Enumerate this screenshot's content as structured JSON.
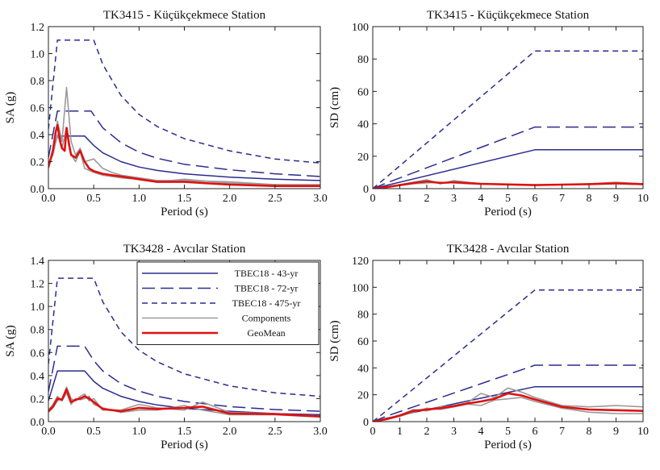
{
  "chart_data": [
    {
      "type": "line",
      "title": "TK3415 - Küçükçekmece Station",
      "xlabel": "Period (s)",
      "ylabel": "SA (g)",
      "xlim": [
        0,
        3.0
      ],
      "ylim": [
        0,
        1.2
      ],
      "xticks": [
        "0.0",
        "0.5",
        "1.0",
        "1.5",
        "2.0",
        "2.5",
        "3.0"
      ],
      "yticks": [
        "0.0",
        "0.2",
        "0.4",
        "0.6",
        "0.8",
        "1.0",
        "1.2"
      ],
      "series": [
        {
          "name": "TBEC18 - 43-yr",
          "color": "#2b2b8f",
          "dash": "solid",
          "x": [
            0,
            0.1,
            0.2,
            0.3,
            0.4,
            0.5,
            0.6,
            0.8,
            1.0,
            1.2,
            1.5,
            2.0,
            2.5,
            3.0
          ],
          "y": [
            0.16,
            0.39,
            0.39,
            0.39,
            0.39,
            0.32,
            0.265,
            0.2,
            0.16,
            0.135,
            0.11,
            0.085,
            0.07,
            0.06
          ]
        },
        {
          "name": "TBEC18 - 72-yr",
          "color": "#2b2b8f",
          "dash": "long",
          "x": [
            0,
            0.1,
            0.2,
            0.3,
            0.4,
            0.47,
            0.6,
            0.8,
            1.0,
            1.2,
            1.5,
            2.0,
            2.5,
            3.0
          ],
          "y": [
            0.23,
            0.575,
            0.575,
            0.575,
            0.575,
            0.575,
            0.45,
            0.34,
            0.27,
            0.225,
            0.18,
            0.14,
            0.11,
            0.09
          ]
        },
        {
          "name": "TBEC18 - 475-yr",
          "color": "#2b2b8f",
          "dash": "short",
          "x": [
            0,
            0.1,
            0.2,
            0.3,
            0.4,
            0.5,
            0.6,
            0.8,
            1.0,
            1.2,
            1.5,
            2.0,
            2.5,
            3.0
          ],
          "y": [
            0.44,
            1.1,
            1.1,
            1.1,
            1.1,
            1.1,
            0.92,
            0.69,
            0.55,
            0.46,
            0.37,
            0.28,
            0.22,
            0.19
          ]
        },
        {
          "name": "Components",
          "color": "#9a9a9a",
          "dash": "solid",
          "x": [
            0,
            0.05,
            0.1,
            0.15,
            0.2,
            0.25,
            0.3,
            0.35,
            0.4,
            0.5,
            0.6,
            0.7,
            0.8,
            1.0,
            1.2,
            1.5,
            2.0,
            2.5,
            3.0
          ],
          "y": [
            0.15,
            0.3,
            0.5,
            0.35,
            0.75,
            0.35,
            0.25,
            0.3,
            0.2,
            0.22,
            0.15,
            0.12,
            0.1,
            0.08,
            0.06,
            0.06,
            0.05,
            0.03,
            0.03
          ]
        },
        {
          "name": "Components",
          "color": "#9a9a9a",
          "dash": "solid",
          "x": [
            0,
            0.05,
            0.1,
            0.15,
            0.2,
            0.25,
            0.3,
            0.35,
            0.4,
            0.5,
            0.6,
            0.7,
            0.8,
            1.0,
            1.2,
            1.5,
            2.0,
            2.5,
            3.0
          ],
          "y": [
            0.18,
            0.25,
            0.4,
            0.3,
            0.45,
            0.25,
            0.2,
            0.28,
            0.15,
            0.12,
            0.1,
            0.09,
            0.08,
            0.07,
            0.05,
            0.07,
            0.04,
            0.03,
            0.02
          ]
        },
        {
          "name": "GeoMean",
          "color": "#e01010",
          "dash": "solid",
          "x": [
            0,
            0.05,
            0.08,
            0.1,
            0.13,
            0.15,
            0.18,
            0.2,
            0.23,
            0.25,
            0.3,
            0.35,
            0.4,
            0.45,
            0.5,
            0.6,
            0.7,
            0.8,
            1.0,
            1.2,
            1.5,
            2.0,
            2.5,
            3.0
          ],
          "y": [
            0.16,
            0.28,
            0.42,
            0.47,
            0.35,
            0.3,
            0.28,
            0.45,
            0.32,
            0.25,
            0.23,
            0.28,
            0.2,
            0.15,
            0.13,
            0.11,
            0.1,
            0.09,
            0.07,
            0.05,
            0.05,
            0.03,
            0.02,
            0.02
          ]
        }
      ]
    },
    {
      "type": "line",
      "title": "TK3415 - Küçükçekmece Station",
      "xlabel": "Period (s)",
      "ylabel": "SD (cm)",
      "xlim": [
        0,
        10
      ],
      "ylim": [
        0,
        100
      ],
      "xticks": [
        "0",
        "1",
        "2",
        "3",
        "4",
        "5",
        "6",
        "7",
        "8",
        "9",
        "10"
      ],
      "yticks": [
        "0",
        "20",
        "40",
        "60",
        "80",
        "100"
      ],
      "series": [
        {
          "name": "TBEC18 - 43-yr",
          "color": "#2b2b8f",
          "dash": "solid",
          "x": [
            0,
            0.5,
            6,
            10
          ],
          "y": [
            0,
            2,
            24,
            24
          ]
        },
        {
          "name": "TBEC18 - 72-yr",
          "color": "#2b2b8f",
          "dash": "long",
          "x": [
            0,
            0.5,
            6,
            10
          ],
          "y": [
            0,
            3.5,
            38,
            38
          ]
        },
        {
          "name": "TBEC18 - 475-yr",
          "color": "#2b2b8f",
          "dash": "short",
          "x": [
            0,
            0.5,
            6,
            10
          ],
          "y": [
            0,
            7,
            85,
            85
          ]
        },
        {
          "name": "Components",
          "color": "#9a9a9a",
          "dash": "solid",
          "x": [
            0,
            0.5,
            1,
            1.5,
            2,
            2.5,
            3,
            3.5,
            4,
            5,
            6,
            7,
            8,
            9,
            10
          ],
          "y": [
            0,
            1,
            2.5,
            4,
            5.5,
            3,
            5,
            4,
            3,
            2.5,
            2,
            2.5,
            3,
            4,
            3
          ]
        },
        {
          "name": "Components",
          "color": "#9a9a9a",
          "dash": "solid",
          "x": [
            0,
            0.5,
            1,
            1.5,
            2,
            2.5,
            3,
            3.5,
            4,
            5,
            6,
            7,
            8,
            9,
            10
          ],
          "y": [
            0,
            0.8,
            2,
            3,
            3.5,
            4,
            3.5,
            3,
            2.8,
            2.5,
            2.3,
            2.5,
            2.7,
            3,
            2.5
          ]
        },
        {
          "name": "GeoMean",
          "color": "#e01010",
          "dash": "solid",
          "x": [
            0,
            0.5,
            1,
            1.5,
            2,
            2.5,
            3,
            3.5,
            4,
            5,
            6,
            7,
            8,
            9,
            10
          ],
          "y": [
            0,
            0.9,
            2.2,
            3.5,
            4.5,
            3.5,
            4,
            3.5,
            3,
            2.6,
            2.2,
            2.5,
            2.8,
            3.3,
            2.8
          ]
        }
      ]
    },
    {
      "type": "line",
      "title": "TK3428 - Avcılar Station",
      "xlabel": "Period (s)",
      "ylabel": "SA (g)",
      "xlim": [
        0,
        3.0
      ],
      "ylim": [
        0,
        1.4
      ],
      "xticks": [
        "0.0",
        "0.5",
        "1.0",
        "1.5",
        "2.0",
        "2.5",
        "3.0"
      ],
      "yticks": [
        "0.0",
        "0.2",
        "0.4",
        "0.6",
        "0.8",
        "1.0",
        "1.2",
        "1.4"
      ],
      "series": [
        {
          "name": "TBEC18 - 43-yr",
          "color": "#2b2b8f",
          "dash": "solid",
          "x": [
            0,
            0.1,
            0.2,
            0.3,
            0.4,
            0.5,
            0.6,
            0.8,
            1.0,
            1.2,
            1.5,
            2.0,
            2.5,
            3.0
          ],
          "y": [
            0.18,
            0.44,
            0.44,
            0.44,
            0.44,
            0.35,
            0.29,
            0.22,
            0.175,
            0.145,
            0.115,
            0.09,
            0.07,
            0.06
          ]
        },
        {
          "name": "TBEC18 - 72-yr",
          "color": "#2b2b8f",
          "dash": "long",
          "x": [
            0,
            0.1,
            0.2,
            0.3,
            0.4,
            0.5,
            0.6,
            0.8,
            1.0,
            1.2,
            1.5,
            2.0,
            2.5,
            3.0
          ],
          "y": [
            0.26,
            0.655,
            0.655,
            0.655,
            0.655,
            0.53,
            0.44,
            0.33,
            0.265,
            0.22,
            0.175,
            0.13,
            0.105,
            0.09
          ]
        },
        {
          "name": "TBEC18 - 475-yr",
          "color": "#2b2b8f",
          "dash": "short",
          "x": [
            0,
            0.1,
            0.2,
            0.3,
            0.4,
            0.5,
            0.6,
            0.8,
            1.0,
            1.2,
            1.5,
            2.0,
            2.5,
            3.0
          ],
          "y": [
            0.5,
            1.245,
            1.245,
            1.245,
            1.245,
            1.245,
            1.04,
            0.78,
            0.62,
            0.52,
            0.415,
            0.31,
            0.25,
            0.22
          ]
        },
        {
          "name": "Components",
          "color": "#9a9a9a",
          "dash": "solid",
          "x": [
            0,
            0.05,
            0.1,
            0.15,
            0.2,
            0.25,
            0.3,
            0.35,
            0.4,
            0.45,
            0.5,
            0.6,
            0.8,
            1.0,
            1.2,
            1.5,
            1.7,
            2.0,
            2.5,
            3.0
          ],
          "y": [
            0.08,
            0.12,
            0.18,
            0.2,
            0.3,
            0.2,
            0.18,
            0.22,
            0.24,
            0.18,
            0.2,
            0.1,
            0.1,
            0.15,
            0.12,
            0.1,
            0.17,
            0.08,
            0.07,
            0.05
          ]
        },
        {
          "name": "Components",
          "color": "#9a9a9a",
          "dash": "solid",
          "x": [
            0,
            0.05,
            0.1,
            0.15,
            0.2,
            0.25,
            0.3,
            0.35,
            0.4,
            0.45,
            0.5,
            0.6,
            0.8,
            1.0,
            1.2,
            1.5,
            1.7,
            2.0,
            2.5,
            3.0
          ],
          "y": [
            0.1,
            0.15,
            0.22,
            0.18,
            0.25,
            0.15,
            0.2,
            0.19,
            0.2,
            0.22,
            0.15,
            0.12,
            0.08,
            0.1,
            0.1,
            0.14,
            0.1,
            0.06,
            0.06,
            0.04
          ]
        },
        {
          "name": "GeoMean",
          "color": "#e01010",
          "dash": "solid",
          "x": [
            0,
            0.05,
            0.1,
            0.15,
            0.2,
            0.25,
            0.3,
            0.35,
            0.4,
            0.45,
            0.5,
            0.6,
            0.8,
            1.0,
            1.2,
            1.5,
            1.7,
            2.0,
            2.5,
            3.0
          ],
          "y": [
            0.09,
            0.13,
            0.2,
            0.19,
            0.28,
            0.17,
            0.19,
            0.2,
            0.22,
            0.2,
            0.17,
            0.11,
            0.09,
            0.12,
            0.11,
            0.12,
            0.13,
            0.07,
            0.065,
            0.045
          ]
        }
      ]
    },
    {
      "type": "line",
      "title": "TK3428 - Avcılar Station",
      "xlabel": "Period (s)",
      "ylabel": "SD (cm)",
      "xlim": [
        0,
        10
      ],
      "ylim": [
        0,
        120
      ],
      "xticks": [
        "0",
        "1",
        "2",
        "3",
        "4",
        "5",
        "6",
        "7",
        "8",
        "9",
        "10"
      ],
      "yticks": [
        "0",
        "20",
        "40",
        "60",
        "80",
        "100",
        "120"
      ],
      "series": [
        {
          "name": "TBEC18 - 43-yr",
          "color": "#2b2b8f",
          "dash": "solid",
          "x": [
            0,
            0.5,
            6,
            10
          ],
          "y": [
            0,
            2.5,
            26,
            26
          ]
        },
        {
          "name": "TBEC18 - 72-yr",
          "color": "#2b2b8f",
          "dash": "long",
          "x": [
            0,
            0.5,
            6,
            10
          ],
          "y": [
            0,
            4,
            42,
            42
          ]
        },
        {
          "name": "TBEC18 - 475-yr",
          "color": "#2b2b8f",
          "dash": "short",
          "x": [
            0,
            0.5,
            6,
            10
          ],
          "y": [
            0,
            8,
            98,
            98
          ]
        },
        {
          "name": "Components",
          "color": "#9a9a9a",
          "dash": "solid",
          "x": [
            0,
            0.5,
            1,
            1.5,
            2,
            2.5,
            3,
            3.5,
            4,
            4.5,
            5,
            5.5,
            6,
            7,
            8,
            9,
            10
          ],
          "y": [
            0,
            2,
            5,
            9,
            8,
            11,
            12,
            14,
            21,
            18,
            25,
            22,
            18,
            12,
            11,
            12,
            11
          ]
        },
        {
          "name": "Components",
          "color": "#9a9a9a",
          "dash": "solid",
          "x": [
            0,
            0.5,
            1,
            1.5,
            2,
            2.5,
            3,
            3.5,
            4,
            4.5,
            5,
            5.5,
            6,
            7,
            8,
            9,
            10
          ],
          "y": [
            0,
            1.5,
            4,
            7,
            10,
            9,
            11,
            13,
            12,
            16,
            17,
            18,
            15,
            10,
            7,
            6,
            6
          ]
        },
        {
          "name": "GeoMean",
          "color": "#e01010",
          "dash": "solid",
          "x": [
            0,
            0.5,
            1,
            1.5,
            2,
            2.5,
            3,
            3.5,
            4,
            4.5,
            5,
            5.5,
            6,
            7,
            8,
            9,
            10
          ],
          "y": [
            0,
            1.8,
            4.5,
            8,
            9,
            10,
            11.5,
            13.5,
            15,
            17,
            21,
            19.5,
            16.5,
            11,
            9,
            8.5,
            8
          ]
        }
      ]
    }
  ],
  "legend": {
    "entries": [
      {
        "label": "TBEC18 - 43-yr",
        "color": "#2b2b8f",
        "dash": "solid"
      },
      {
        "label": "TBEC18 - 72-yr",
        "color": "#2b2b8f",
        "dash": "long"
      },
      {
        "label": "TBEC18 - 475-yr",
        "color": "#2b2b8f",
        "dash": "short"
      },
      {
        "label": "Components",
        "color": "#9a9a9a",
        "dash": "solid"
      },
      {
        "label": "GeoMean",
        "color": "#e01010",
        "dash": "solid"
      }
    ]
  }
}
